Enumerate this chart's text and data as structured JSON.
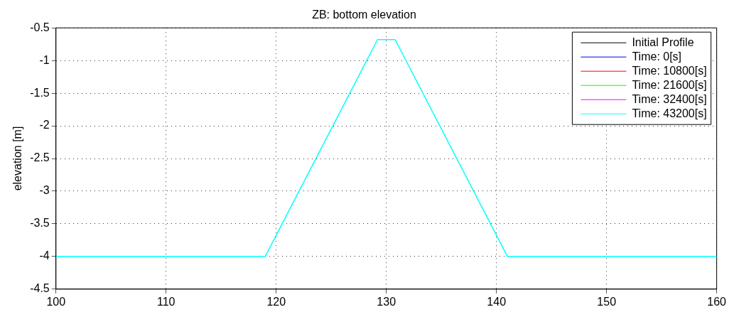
{
  "chart_data": {
    "type": "line",
    "title": "ZB: bottom elevation",
    "ylabel": "elevation [m]",
    "x": [
      100,
      119,
      129.2,
      130.8,
      141,
      160
    ],
    "series": [
      {
        "name": "Initial Profile",
        "color": "#000000",
        "values": [
          null,
          null,
          null,
          null,
          null,
          null
        ]
      },
      {
        "name": "Time: 0[s]",
        "color": "#0000ff",
        "values": [
          null,
          null,
          null,
          null,
          null,
          null
        ]
      },
      {
        "name": "Time: 10800[s]",
        "color": "#ff0000",
        "values": [
          null,
          null,
          null,
          null,
          null,
          null
        ]
      },
      {
        "name": "Time: 21600[s]",
        "color": "#00ff00",
        "values": [
          null,
          null,
          null,
          null,
          null,
          null
        ]
      },
      {
        "name": "Time: 32400[s]",
        "color": "#ff00ff",
        "values": [
          null,
          null,
          null,
          null,
          null,
          null
        ]
      },
      {
        "name": "Time: 43200[s]",
        "color": "#00ffff",
        "values": [
          -4,
          -4,
          -0.68,
          -0.68,
          -4,
          -4
        ]
      }
    ],
    "xlim": [
      100,
      160
    ],
    "xticks": [
      100,
      110,
      120,
      130,
      140,
      150,
      160
    ],
    "ylim": [
      -4.5,
      -0.5
    ],
    "yticks": [
      -4.5,
      -4,
      -3.5,
      -3,
      -2.5,
      -2,
      -1.5,
      -1,
      -0.5
    ],
    "grid": true,
    "legend": "top right",
    "marker": "none",
    "line_style": "solid"
  }
}
